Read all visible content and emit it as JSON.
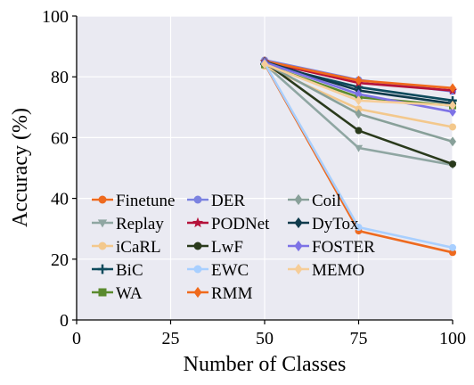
{
  "chart_data": {
    "type": "line",
    "title": "",
    "xlabel": "Number of Classes",
    "ylabel": "Accuracy (%)",
    "xlim": [
      0,
      100
    ],
    "ylim": [
      0,
      100
    ],
    "xticks": [
      "0",
      "25",
      "50",
      "75",
      "100"
    ],
    "yticks": [
      "0",
      "20",
      "40",
      "60",
      "80",
      "100"
    ],
    "grid": true,
    "background": "#eaeaf2",
    "legend": {
      "position": "lower-left",
      "columns": 3
    },
    "x": [
      50,
      75,
      100
    ],
    "series": [
      {
        "name": "Finetune",
        "color": "#ee6a1f",
        "marker": "circle",
        "values": [
          84.3,
          29.3,
          22.2
        ]
      },
      {
        "name": "Replay",
        "color": "#8fa6a2",
        "marker": "triangle-down",
        "values": [
          84.2,
          56.6,
          51.0
        ]
      },
      {
        "name": "iCaRL",
        "color": "#f3c88c",
        "marker": "circle",
        "values": [
          83.5,
          69.4,
          63.5
        ]
      },
      {
        "name": "BiC",
        "color": "#0d4a5c",
        "marker": "plus",
        "values": [
          84.2,
          76.6,
          72.2
        ]
      },
      {
        "name": "WA",
        "color": "#5a8a2e",
        "marker": "square",
        "values": [
          84.0,
          73.3,
          70.5
        ]
      },
      {
        "name": "DER",
        "color": "#7b82e0",
        "marker": "circle",
        "values": [
          85.5,
          79.0,
          75.2
        ]
      },
      {
        "name": "PODNet",
        "color": "#b5123a",
        "marker": "star",
        "values": [
          85.0,
          78.0,
          75.5
        ]
      },
      {
        "name": "LwF",
        "color": "#2a3a1c",
        "marker": "circle",
        "values": [
          84.8,
          62.3,
          51.3
        ]
      },
      {
        "name": "EWC",
        "color": "#a8cfff",
        "marker": "circle",
        "values": [
          84.5,
          30.5,
          23.8
        ]
      },
      {
        "name": "RMM",
        "color": "#f06a1c",
        "marker": "diamond",
        "values": [
          85.2,
          78.8,
          76.3
        ]
      },
      {
        "name": "Coil",
        "color": "#88a099",
        "marker": "diamond",
        "values": [
          84.5,
          67.8,
          58.7
        ]
      },
      {
        "name": "DyTox",
        "color": "#0f3b4c",
        "marker": "diamond",
        "values": [
          85.0,
          75.5,
          71.2
        ]
      },
      {
        "name": "FOSTER",
        "color": "#7d72e6",
        "marker": "diamond",
        "values": [
          84.8,
          74.3,
          68.5
        ]
      },
      {
        "name": "MEMO",
        "color": "#f6cd98",
        "marker": "diamond",
        "values": [
          84.2,
          72.2,
          70.6
        ]
      }
    ]
  }
}
